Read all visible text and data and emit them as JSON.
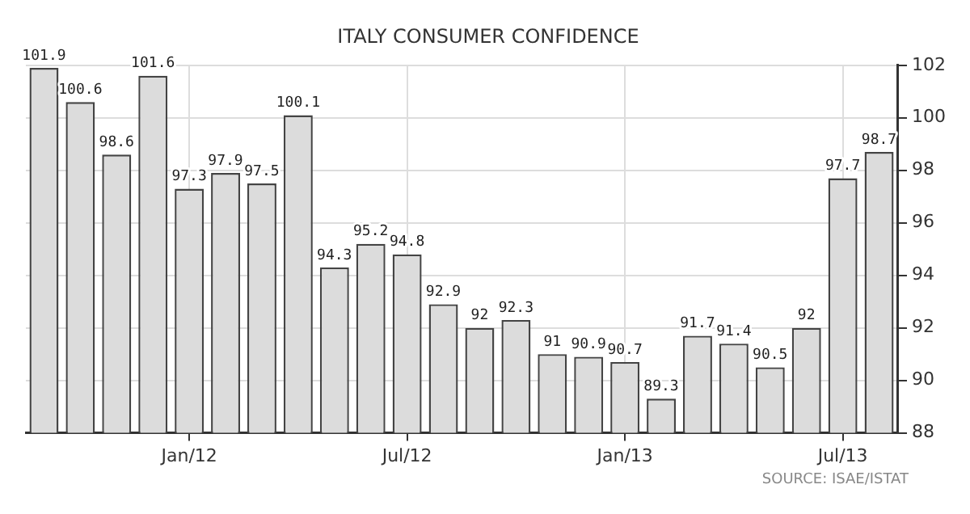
{
  "chart_data": {
    "type": "bar",
    "title": "ITALY CONSUMER CONFIDENCE",
    "categories": [
      null,
      null,
      null,
      null,
      "Jan/12",
      null,
      null,
      null,
      null,
      null,
      "Jul/12",
      null,
      null,
      null,
      null,
      null,
      "Jan/13",
      null,
      null,
      null,
      null,
      null,
      "Jul/13",
      null
    ],
    "values": [
      101.9,
      100.6,
      98.6,
      101.6,
      97.3,
      97.9,
      97.5,
      100.1,
      94.3,
      95.2,
      94.8,
      92.9,
      92,
      92.3,
      91,
      90.9,
      90.7,
      89.3,
      91.7,
      91.4,
      90.5,
      92,
      97.7,
      98.7
    ],
    "color": "#dcdcdc",
    "ylim": [
      88,
      102
    ],
    "yticks": [
      88,
      90,
      92,
      94,
      96,
      98,
      100,
      102
    ],
    "grid": true,
    "data_labels": true,
    "annotations": [
      "SOURCE: ISAE/ISTAT"
    ]
  }
}
